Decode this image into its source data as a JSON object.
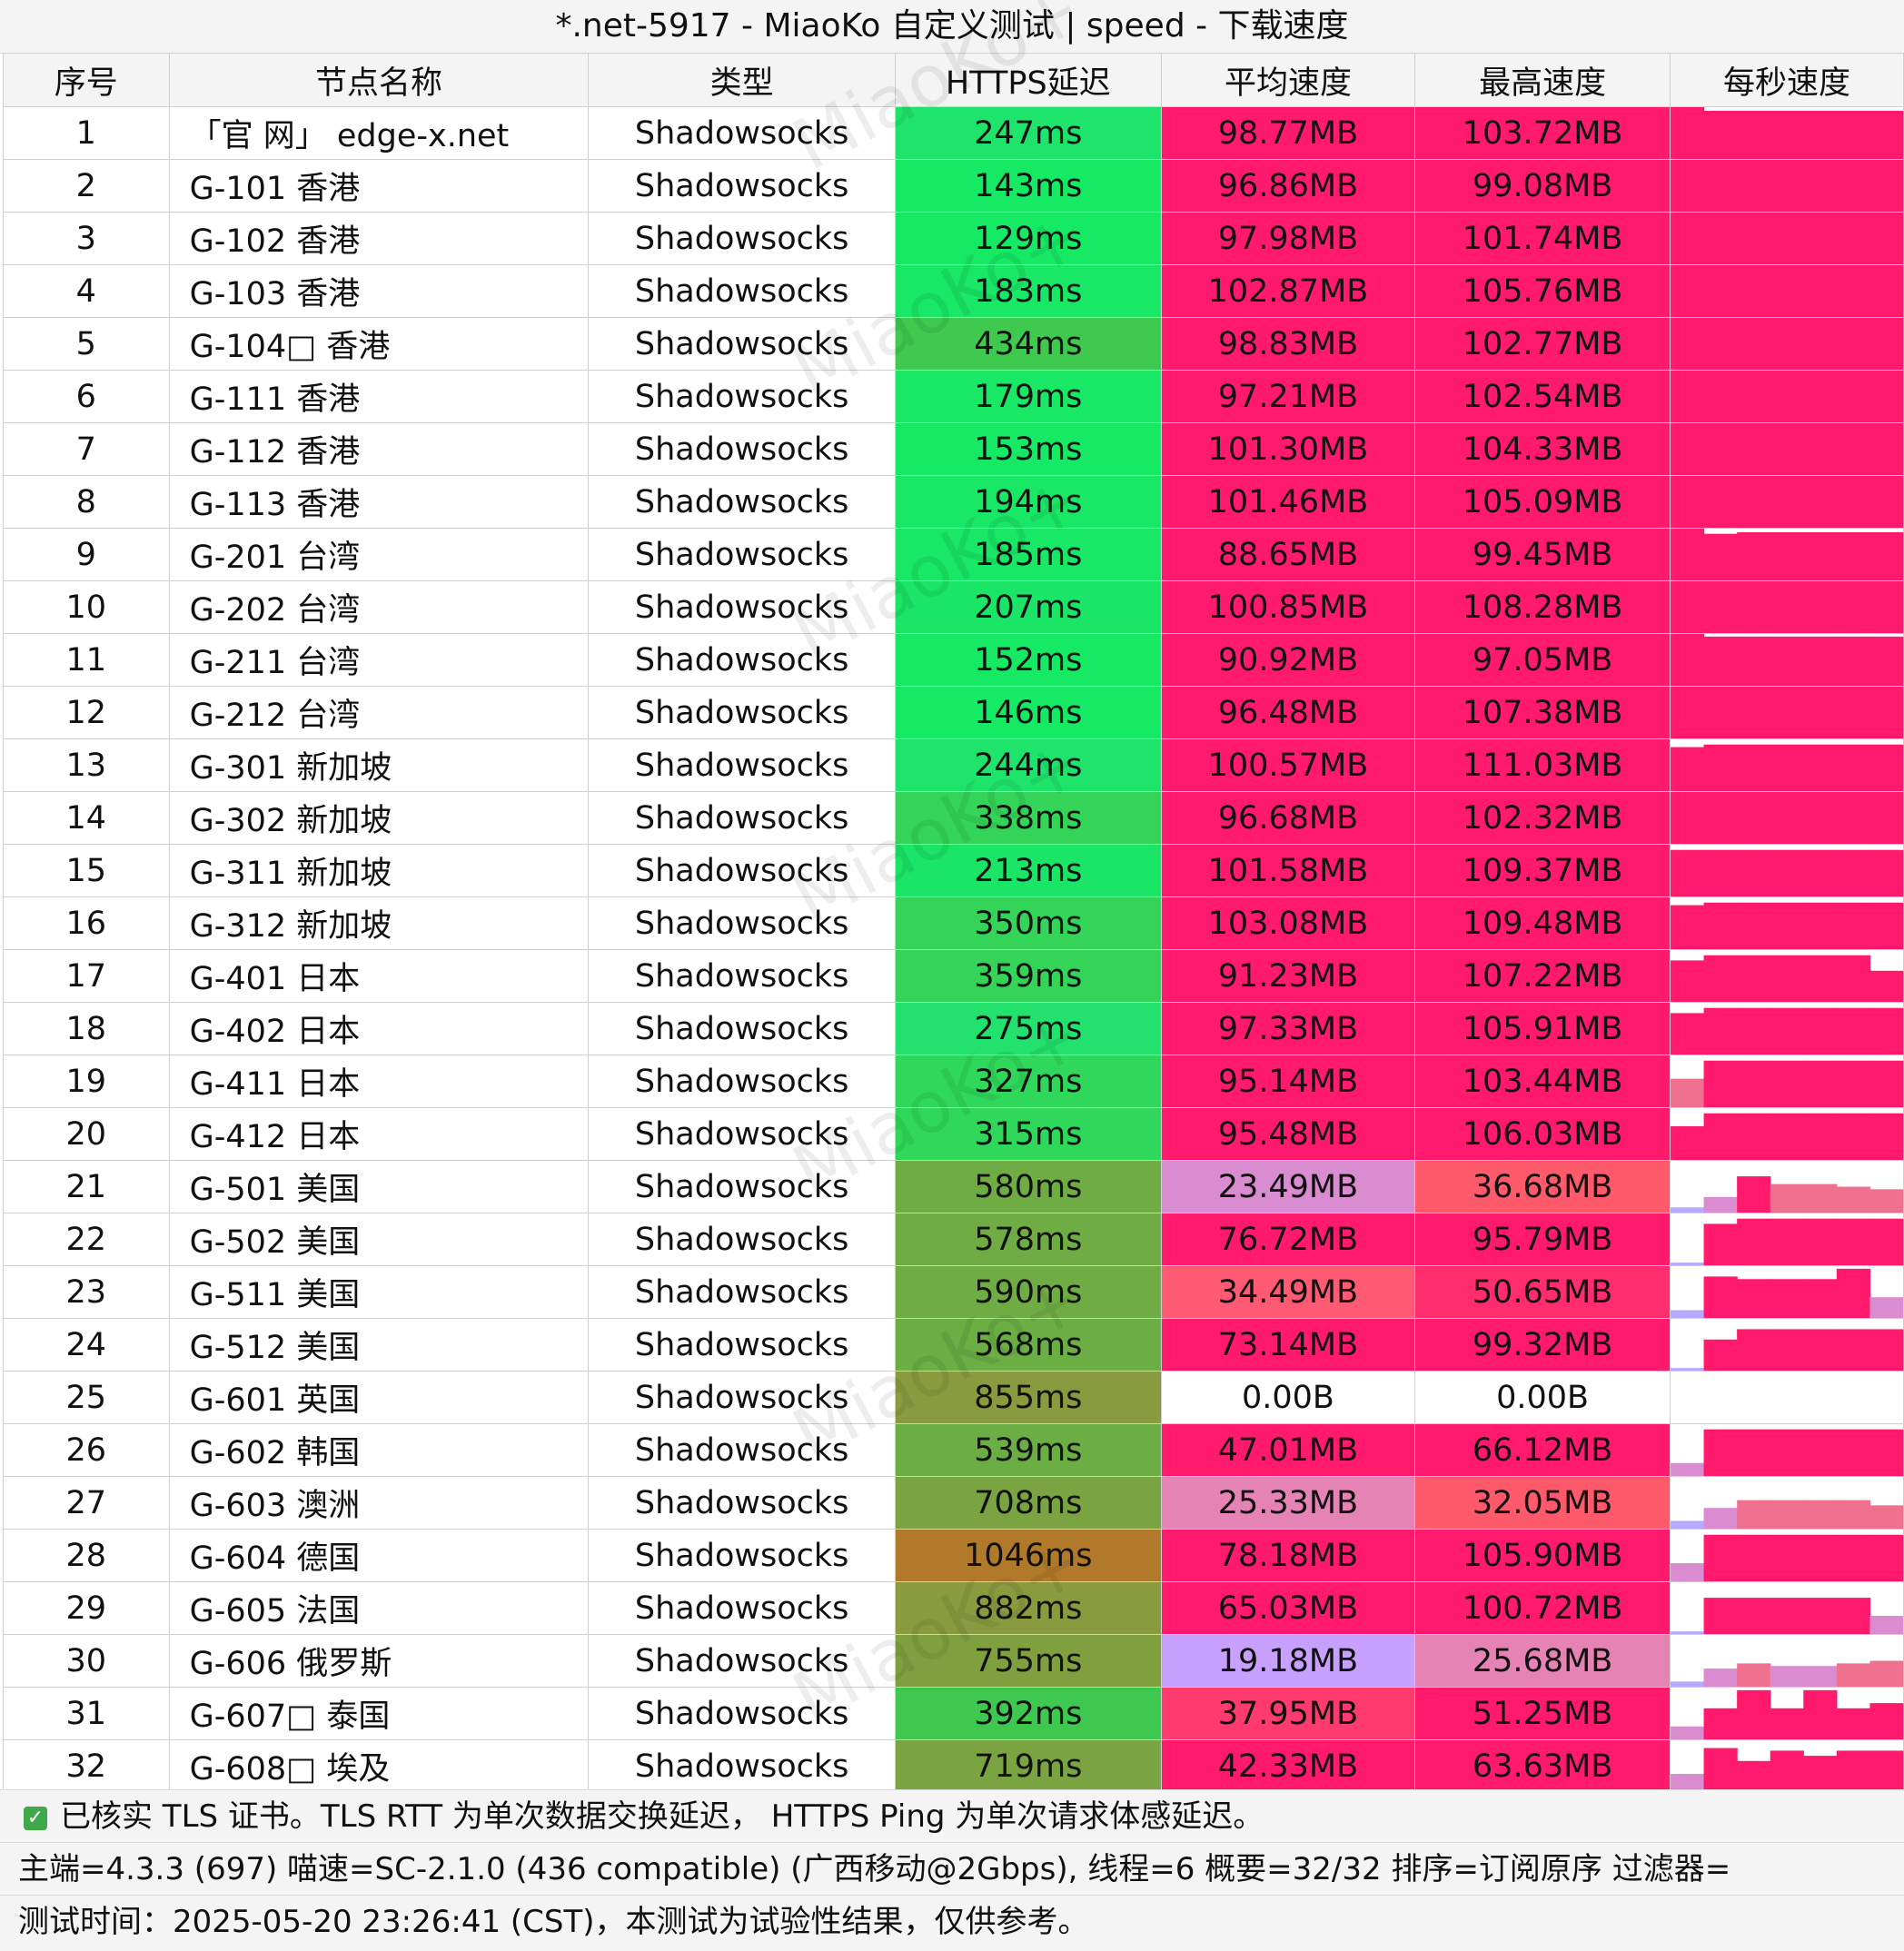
{
  "title": "*.net-5917 - MiaoKo 自定义测试 | speed - 下载速度",
  "watermark": "MiaoKo+",
  "columns": [
    "序号",
    "节点名称",
    "类型",
    "HTTPS延迟",
    "平均速度",
    "最高速度",
    "每秒速度"
  ],
  "rows": [
    {
      "idx": "1",
      "name": "「官 网」 edge-x.net",
      "type": "Shadowsocks",
      "latency": "247ms",
      "lat_color": "#1fe46b",
      "avg": "98.77MB",
      "avg_color": "#ff1a6e",
      "max": "103.72MB",
      "max_color": "#ff1a6e",
      "samples": [
        1,
        0.93,
        0.93,
        0.93,
        0.93,
        0.93,
        0.93
      ]
    },
    {
      "idx": "2",
      "name": "G-101 香港",
      "type": "Shadowsocks",
      "latency": "143ms",
      "lat_color": "#16e964",
      "avg": "96.86MB",
      "avg_color": "#ff1a6e",
      "max": "99.08MB",
      "max_color": "#ff1a6e",
      "samples": [
        1,
        1,
        1,
        1,
        1,
        1,
        1
      ]
    },
    {
      "idx": "3",
      "name": "G-102 香港",
      "type": "Shadowsocks",
      "latency": "129ms",
      "lat_color": "#16e964",
      "avg": "97.98MB",
      "avg_color": "#ff1a6e",
      "max": "101.74MB",
      "max_color": "#ff1a6e",
      "samples": [
        1,
        1,
        1,
        1,
        1,
        1,
        1
      ]
    },
    {
      "idx": "4",
      "name": "G-103 香港",
      "type": "Shadowsocks",
      "latency": "183ms",
      "lat_color": "#19e766",
      "avg": "102.87MB",
      "avg_color": "#ff1a6e",
      "max": "105.76MB",
      "max_color": "#ff1a6e",
      "samples": [
        1,
        1,
        1,
        1,
        1,
        1,
        1
      ]
    },
    {
      "idx": "5",
      "name": "G-104□ 香港",
      "type": "Shadowsocks",
      "latency": "434ms",
      "lat_color": "#3fc94f",
      "avg": "98.83MB",
      "avg_color": "#ff1a6e",
      "max": "102.77MB",
      "max_color": "#ff1a6e",
      "samples": [
        1,
        1,
        1,
        1,
        1,
        1,
        1
      ]
    },
    {
      "idx": "6",
      "name": "G-111 香港",
      "type": "Shadowsocks",
      "latency": "179ms",
      "lat_color": "#19e766",
      "avg": "97.21MB",
      "avg_color": "#ff1a6e",
      "max": "102.54MB",
      "max_color": "#ff1a6e",
      "samples": [
        1,
        1,
        1,
        1,
        1,
        1,
        1
      ]
    },
    {
      "idx": "7",
      "name": "G-112 香港",
      "type": "Shadowsocks",
      "latency": "153ms",
      "lat_color": "#16e964",
      "avg": "101.30MB",
      "avg_color": "#ff1a6e",
      "max": "104.33MB",
      "max_color": "#ff1a6e",
      "samples": [
        1,
        1,
        1,
        1,
        1,
        1,
        1
      ]
    },
    {
      "idx": "8",
      "name": "G-113 香港",
      "type": "Shadowsocks",
      "latency": "194ms",
      "lat_color": "#19e766",
      "avg": "101.46MB",
      "avg_color": "#ff1a6e",
      "max": "105.09MB",
      "max_color": "#ff1a6e",
      "samples": [
        1,
        1,
        1,
        1,
        1,
        1,
        1
      ]
    },
    {
      "idx": "9",
      "name": "G-201 台湾",
      "type": "Shadowsocks",
      "latency": "185ms",
      "lat_color": "#19e766",
      "avg": "88.65MB",
      "avg_color": "#ff1a6e",
      "max": "99.45MB",
      "max_color": "#ff1a6e",
      "samples": [
        1,
        0.9,
        0.93,
        0.93,
        0.93,
        0.93,
        0.93
      ]
    },
    {
      "idx": "10",
      "name": "G-202 台湾",
      "type": "Shadowsocks",
      "latency": "207ms",
      "lat_color": "#1ae567",
      "avg": "100.85MB",
      "avg_color": "#ff1a6e",
      "max": "108.28MB",
      "max_color": "#ff1a6e",
      "samples": [
        1,
        1,
        1,
        1,
        1,
        1,
        1
      ]
    },
    {
      "idx": "11",
      "name": "G-211 台湾",
      "type": "Shadowsocks",
      "latency": "152ms",
      "lat_color": "#16e964",
      "avg": "90.92MB",
      "avg_color": "#ff1a6e",
      "max": "97.05MB",
      "max_color": "#ff1a6e",
      "samples": [
        1,
        0.95,
        0.95,
        0.95,
        0.95,
        0.95,
        0.95
      ]
    },
    {
      "idx": "12",
      "name": "G-212 台湾",
      "type": "Shadowsocks",
      "latency": "146ms",
      "lat_color": "#16e964",
      "avg": "96.48MB",
      "avg_color": "#ff1a6e",
      "max": "107.38MB",
      "max_color": "#ff1a6e",
      "samples": [
        1,
        1,
        1,
        1,
        1,
        1,
        1
      ]
    },
    {
      "idx": "13",
      "name": "G-301 新加坡",
      "type": "Shadowsocks",
      "latency": "244ms",
      "lat_color": "#1fe46b",
      "avg": "100.57MB",
      "avg_color": "#ff1a6e",
      "max": "111.03MB",
      "max_color": "#ff1a6e",
      "samples": [
        0.85,
        0.9,
        0.9,
        0.9,
        0.9,
        0.9,
        0.9
      ]
    },
    {
      "idx": "14",
      "name": "G-302 新加坡",
      "type": "Shadowsocks",
      "latency": "338ms",
      "lat_color": "#33d457",
      "avg": "96.68MB",
      "avg_color": "#ff1a6e",
      "max": "102.32MB",
      "max_color": "#ff1a6e",
      "samples": [
        1,
        1,
        1,
        1,
        1,
        1,
        1
      ]
    },
    {
      "idx": "15",
      "name": "G-311 新加坡",
      "type": "Shadowsocks",
      "latency": "213ms",
      "lat_color": "#1ae567",
      "avg": "101.58MB",
      "avg_color": "#ff1a6e",
      "max": "109.37MB",
      "max_color": "#ff1a6e",
      "samples": [
        0.9,
        0.9,
        0.9,
        0.9,
        0.9,
        0.9,
        0.9
      ]
    },
    {
      "idx": "16",
      "name": "G-312 新加坡",
      "type": "Shadowsocks",
      "latency": "350ms",
      "lat_color": "#33d457",
      "avg": "103.08MB",
      "avg_color": "#ff1a6e",
      "max": "109.48MB",
      "max_color": "#ff1a6e",
      "samples": [
        0.85,
        0.9,
        0.9,
        0.9,
        0.9,
        0.9,
        0.9
      ]
    },
    {
      "idx": "17",
      "name": "G-401 日本",
      "type": "Shadowsocks",
      "latency": "359ms",
      "lat_color": "#33d457",
      "avg": "91.23MB",
      "avg_color": "#ff1a6e",
      "max": "107.22MB",
      "max_color": "#ff1a6e",
      "samples": [
        0.8,
        0.9,
        0.9,
        0.9,
        0.9,
        0.9,
        0.6
      ]
    },
    {
      "idx": "18",
      "name": "G-402 日本",
      "type": "Shadowsocks",
      "latency": "275ms",
      "lat_color": "#22e16c",
      "avg": "97.33MB",
      "avg_color": "#ff1a6e",
      "max": "105.91MB",
      "max_color": "#ff1a6e",
      "samples": [
        0.8,
        0.9,
        0.9,
        0.9,
        0.9,
        0.9,
        0.9
      ]
    },
    {
      "idx": "19",
      "name": "G-411 日本",
      "type": "Shadowsocks",
      "latency": "327ms",
      "lat_color": "#2fd85a",
      "avg": "95.14MB",
      "avg_color": "#ff1a6e",
      "max": "103.44MB",
      "max_color": "#ff1a6e",
      "samples": [
        0.55,
        0.9,
        0.9,
        0.9,
        0.9,
        0.9,
        0.9
      ]
    },
    {
      "idx": "20",
      "name": "G-412 日本",
      "type": "Shadowsocks",
      "latency": "315ms",
      "lat_color": "#2fd85a",
      "avg": "95.48MB",
      "avg_color": "#ff1a6e",
      "max": "106.03MB",
      "max_color": "#ff1a6e",
      "samples": [
        0.65,
        0.9,
        0.9,
        0.9,
        0.9,
        0.9,
        0.9
      ]
    },
    {
      "idx": "21",
      "name": "G-501 美国",
      "type": "Shadowsocks",
      "latency": "580ms",
      "lat_color": "#70ac44",
      "avg": "23.49MB",
      "avg_color": "#d98ccf",
      "max": "36.68MB",
      "max_color": "#ff5a6c",
      "samples": [
        0.1,
        0.3,
        0.7,
        0.55,
        0.55,
        0.5,
        0.45
      ]
    },
    {
      "idx": "22",
      "name": "G-502 美国",
      "type": "Shadowsocks",
      "latency": "578ms",
      "lat_color": "#70ac44",
      "avg": "76.72MB",
      "avg_color": "#ff1a6e",
      "max": "95.79MB",
      "max_color": "#ff1a6e",
      "samples": [
        0.05,
        0.8,
        0.9,
        0.9,
        0.9,
        0.9,
        0.9
      ]
    },
    {
      "idx": "23",
      "name": "G-511 美国",
      "type": "Shadowsocks",
      "latency": "590ms",
      "lat_color": "#70ac44",
      "avg": "34.49MB",
      "avg_color": "#ff5a74",
      "max": "50.65MB",
      "max_color": "#ff2d6e",
      "samples": [
        0.15,
        0.8,
        0.75,
        0.75,
        0.75,
        0.95,
        0.4
      ]
    },
    {
      "idx": "24",
      "name": "G-512 美国",
      "type": "Shadowsocks",
      "latency": "568ms",
      "lat_color": "#6aae44",
      "avg": "73.14MB",
      "avg_color": "#ff1a6e",
      "max": "99.32MB",
      "max_color": "#ff1a6e",
      "samples": [
        0.05,
        0.6,
        0.8,
        0.8,
        0.8,
        0.8,
        0.8
      ]
    },
    {
      "idx": "25",
      "name": "G-601 英国",
      "type": "Shadowsocks",
      "latency": "855ms",
      "lat_color": "#8a9a3e",
      "avg": "0.00B",
      "avg_color": "#ffffff",
      "max": "0.00B",
      "max_color": "#ffffff",
      "samples": [
        0,
        0,
        0,
        0,
        0,
        0,
        0
      ]
    },
    {
      "idx": "26",
      "name": "G-602 韩国",
      "type": "Shadowsocks",
      "latency": "539ms",
      "lat_color": "#6aae44",
      "avg": "47.01MB",
      "avg_color": "#ff1a6e",
      "max": "66.12MB",
      "max_color": "#ff1a6e",
      "samples": [
        0.25,
        0.9,
        0.9,
        0.9,
        0.9,
        0.9,
        0.9
      ]
    },
    {
      "idx": "27",
      "name": "G-603 澳洲",
      "type": "Shadowsocks",
      "latency": "708ms",
      "lat_color": "#7aa442",
      "avg": "25.33MB",
      "avg_color": "#e584b4",
      "max": "32.05MB",
      "max_color": "#ff5a6c",
      "samples": [
        0.15,
        0.4,
        0.55,
        0.55,
        0.55,
        0.55,
        0.45
      ]
    },
    {
      "idx": "28",
      "name": "G-604 德国",
      "type": "Shadowsocks",
      "latency": "1046ms",
      "lat_color": "#b07a2a",
      "avg": "78.18MB",
      "avg_color": "#ff1a6e",
      "max": "105.90MB",
      "max_color": "#ff1a6e",
      "samples": [
        0.35,
        0.9,
        0.9,
        0.9,
        0.9,
        0.9,
        0.9
      ]
    },
    {
      "idx": "29",
      "name": "G-605 法国",
      "type": "Shadowsocks",
      "latency": "882ms",
      "lat_color": "#8a9a3e",
      "avg": "65.03MB",
      "avg_color": "#ff1a6e",
      "max": "100.72MB",
      "max_color": "#ff1a6e",
      "samples": [
        0.05,
        0.7,
        0.7,
        0.7,
        0.7,
        0.7,
        0.35
      ]
    },
    {
      "idx": "30",
      "name": "G-606 俄罗斯",
      "type": "Shadowsocks",
      "latency": "755ms",
      "lat_color": "#80a040",
      "avg": "19.18MB",
      "avg_color": "#c8a0ff",
      "max": "25.68MB",
      "max_color": "#e584b4",
      "samples": [
        0.1,
        0.35,
        0.45,
        0.4,
        0.4,
        0.45,
        0.5
      ]
    },
    {
      "idx": "31",
      "name": "G-607□ 泰国",
      "type": "Shadowsocks",
      "latency": "392ms",
      "lat_color": "#3ec84f",
      "avg": "37.95MB",
      "avg_color": "#ff3a6e",
      "max": "51.25MB",
      "max_color": "#ff1a6e",
      "samples": [
        0.25,
        0.6,
        0.95,
        0.6,
        0.95,
        0.6,
        0.7
      ]
    },
    {
      "idx": "32",
      "name": "G-608□ 埃及",
      "type": "Shadowsocks",
      "latency": "719ms",
      "lat_color": "#7aa442",
      "avg": "42.33MB",
      "avg_color": "#ff1a6e",
      "max": "63.63MB",
      "max_color": "#ff1a6e",
      "samples": [
        0.35,
        0.85,
        0.6,
        0.8,
        0.7,
        0.8,
        0.8
      ]
    }
  ],
  "footer": {
    "tls_note": "已核实 TLS 证书。TLS RTT 为单次数据交换延迟， HTTPS Ping 为单次请求体感延迟。",
    "info": "主端=4.3.3 (697) 喵速=SC-2.1.0 (436 compatible) (广西移动@2Gbps), 线程=6 概要=32/32 排序=订阅原序 过滤器=",
    "time": "测试时间：2025-05-20 23:26:41 (CST)，本测试为试验性结果，仅供参考。"
  }
}
